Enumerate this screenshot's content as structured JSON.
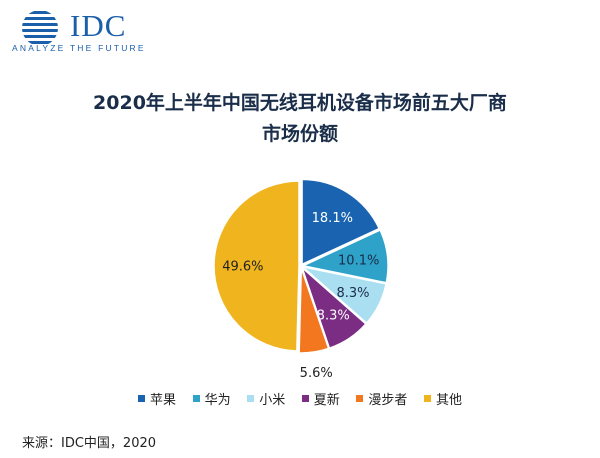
{
  "brand": {
    "name": "IDC",
    "tagline": "ANALYZE THE FUTURE",
    "color": "#1a5faa"
  },
  "chart_data": {
    "type": "pie",
    "title_line1": "2020年上半年中国无线耳机设备市场前五大厂商",
    "title_line2": "市场份额",
    "slices": [
      {
        "name": "苹果",
        "value": 18.1,
        "label": "18.1%",
        "color": "#1a63b0",
        "label_color": "#ffffff"
      },
      {
        "name": "华为",
        "value": 10.1,
        "label": "10.1%",
        "color": "#2ea2c8",
        "label_color": "#1a2e4a"
      },
      {
        "name": "小米",
        "value": 8.3,
        "label": "8.3%",
        "color": "#a9dff0",
        "label_color": "#1a2e4a"
      },
      {
        "name": "夏新",
        "value": 8.3,
        "label": "8.3%",
        "color": "#7a2d83",
        "label_color": "#ffffff"
      },
      {
        "name": "漫步者",
        "value": 5.6,
        "label": "5.6%",
        "color": "#f2771f",
        "label_color": "#222222"
      },
      {
        "name": "其他",
        "value": 49.6,
        "label": "49.6%",
        "color": "#f0b51e",
        "label_color": "#222222"
      }
    ],
    "start_angle_deg": 0,
    "direction": "clockwise",
    "legend_position": "bottom"
  },
  "source": "来源：IDC中国，2020"
}
